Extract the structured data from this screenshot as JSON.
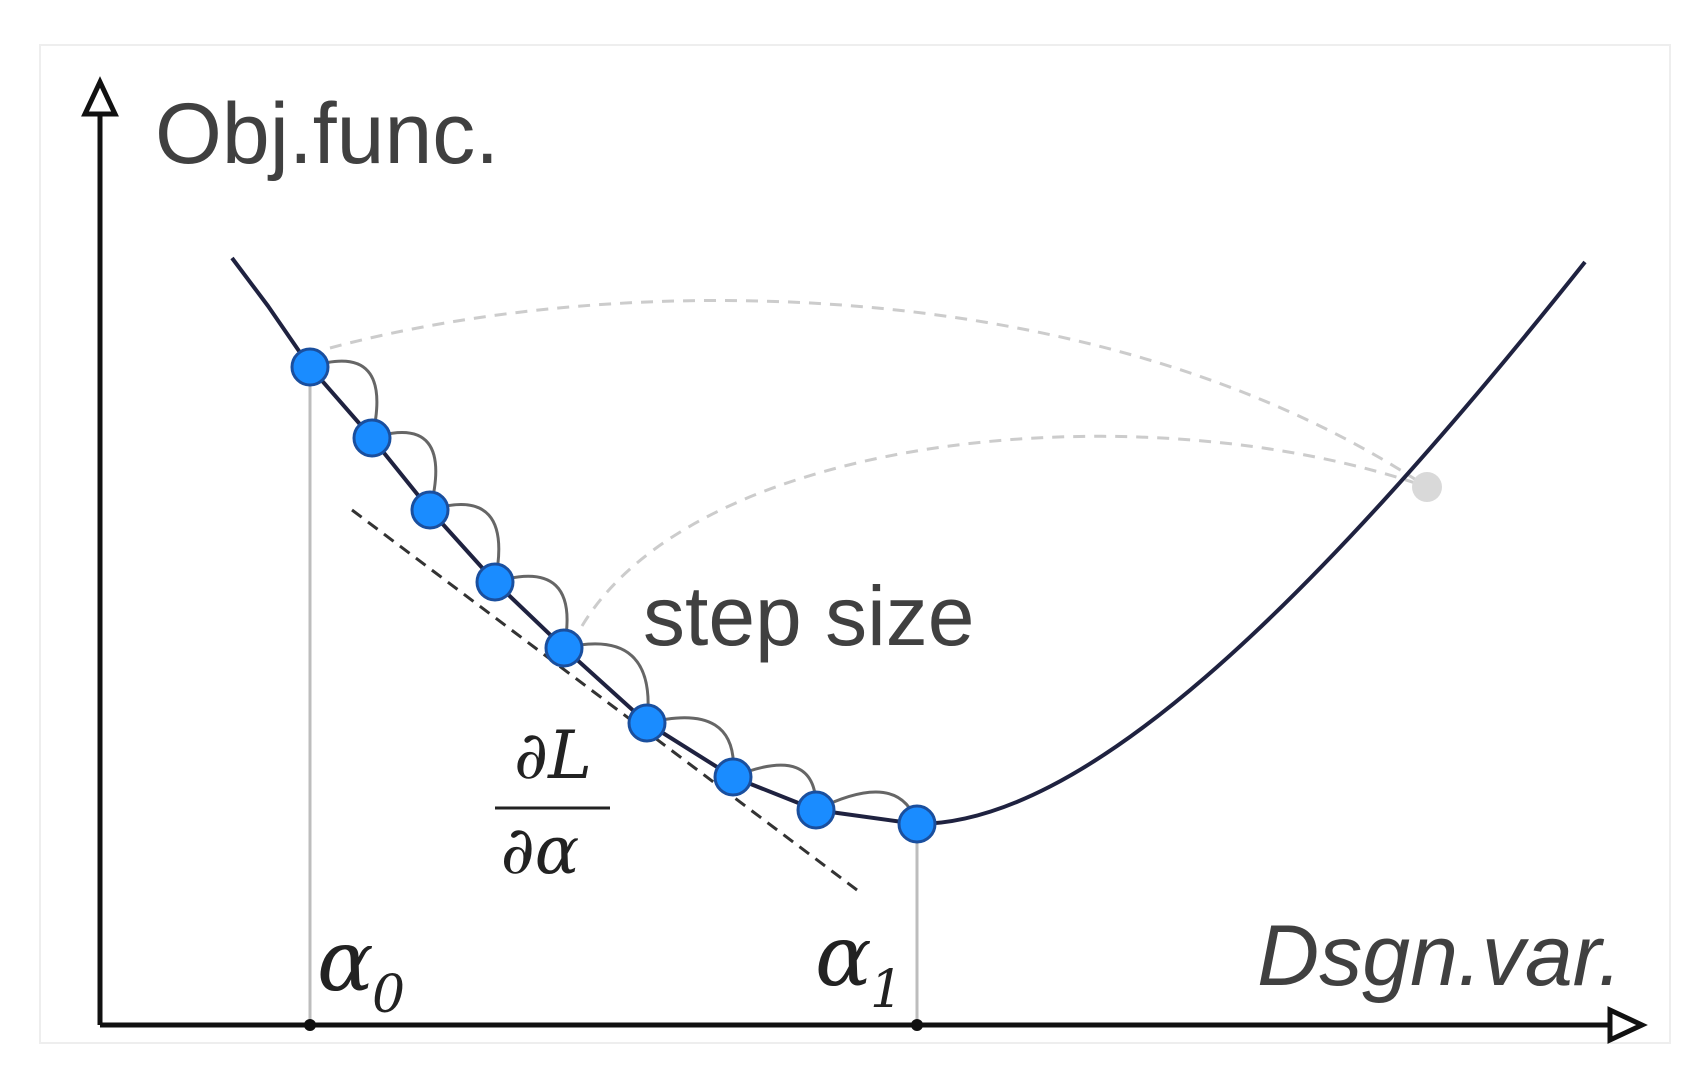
{
  "axes": {
    "y_label": "Obj.func.",
    "x_label": "Dsgn.var."
  },
  "annotations": {
    "step_size": "step size",
    "derivative_numerator": "∂L",
    "derivative_denominator": "∂α",
    "alpha0_symbol": "α",
    "alpha0_subscript": "0",
    "alpha1_symbol": "α",
    "alpha1_subscript": "1"
  },
  "colors": {
    "curve": "#1f2240",
    "step_point": "#1a8cff",
    "step_point_outline": "#1a4f9e",
    "overshoot_point": "#d9d9d9",
    "hop_arc": "#666666",
    "dashed_arc": "#cccccc",
    "tangent": "#333333",
    "axis": "#111111"
  },
  "step_point_count": 10
}
